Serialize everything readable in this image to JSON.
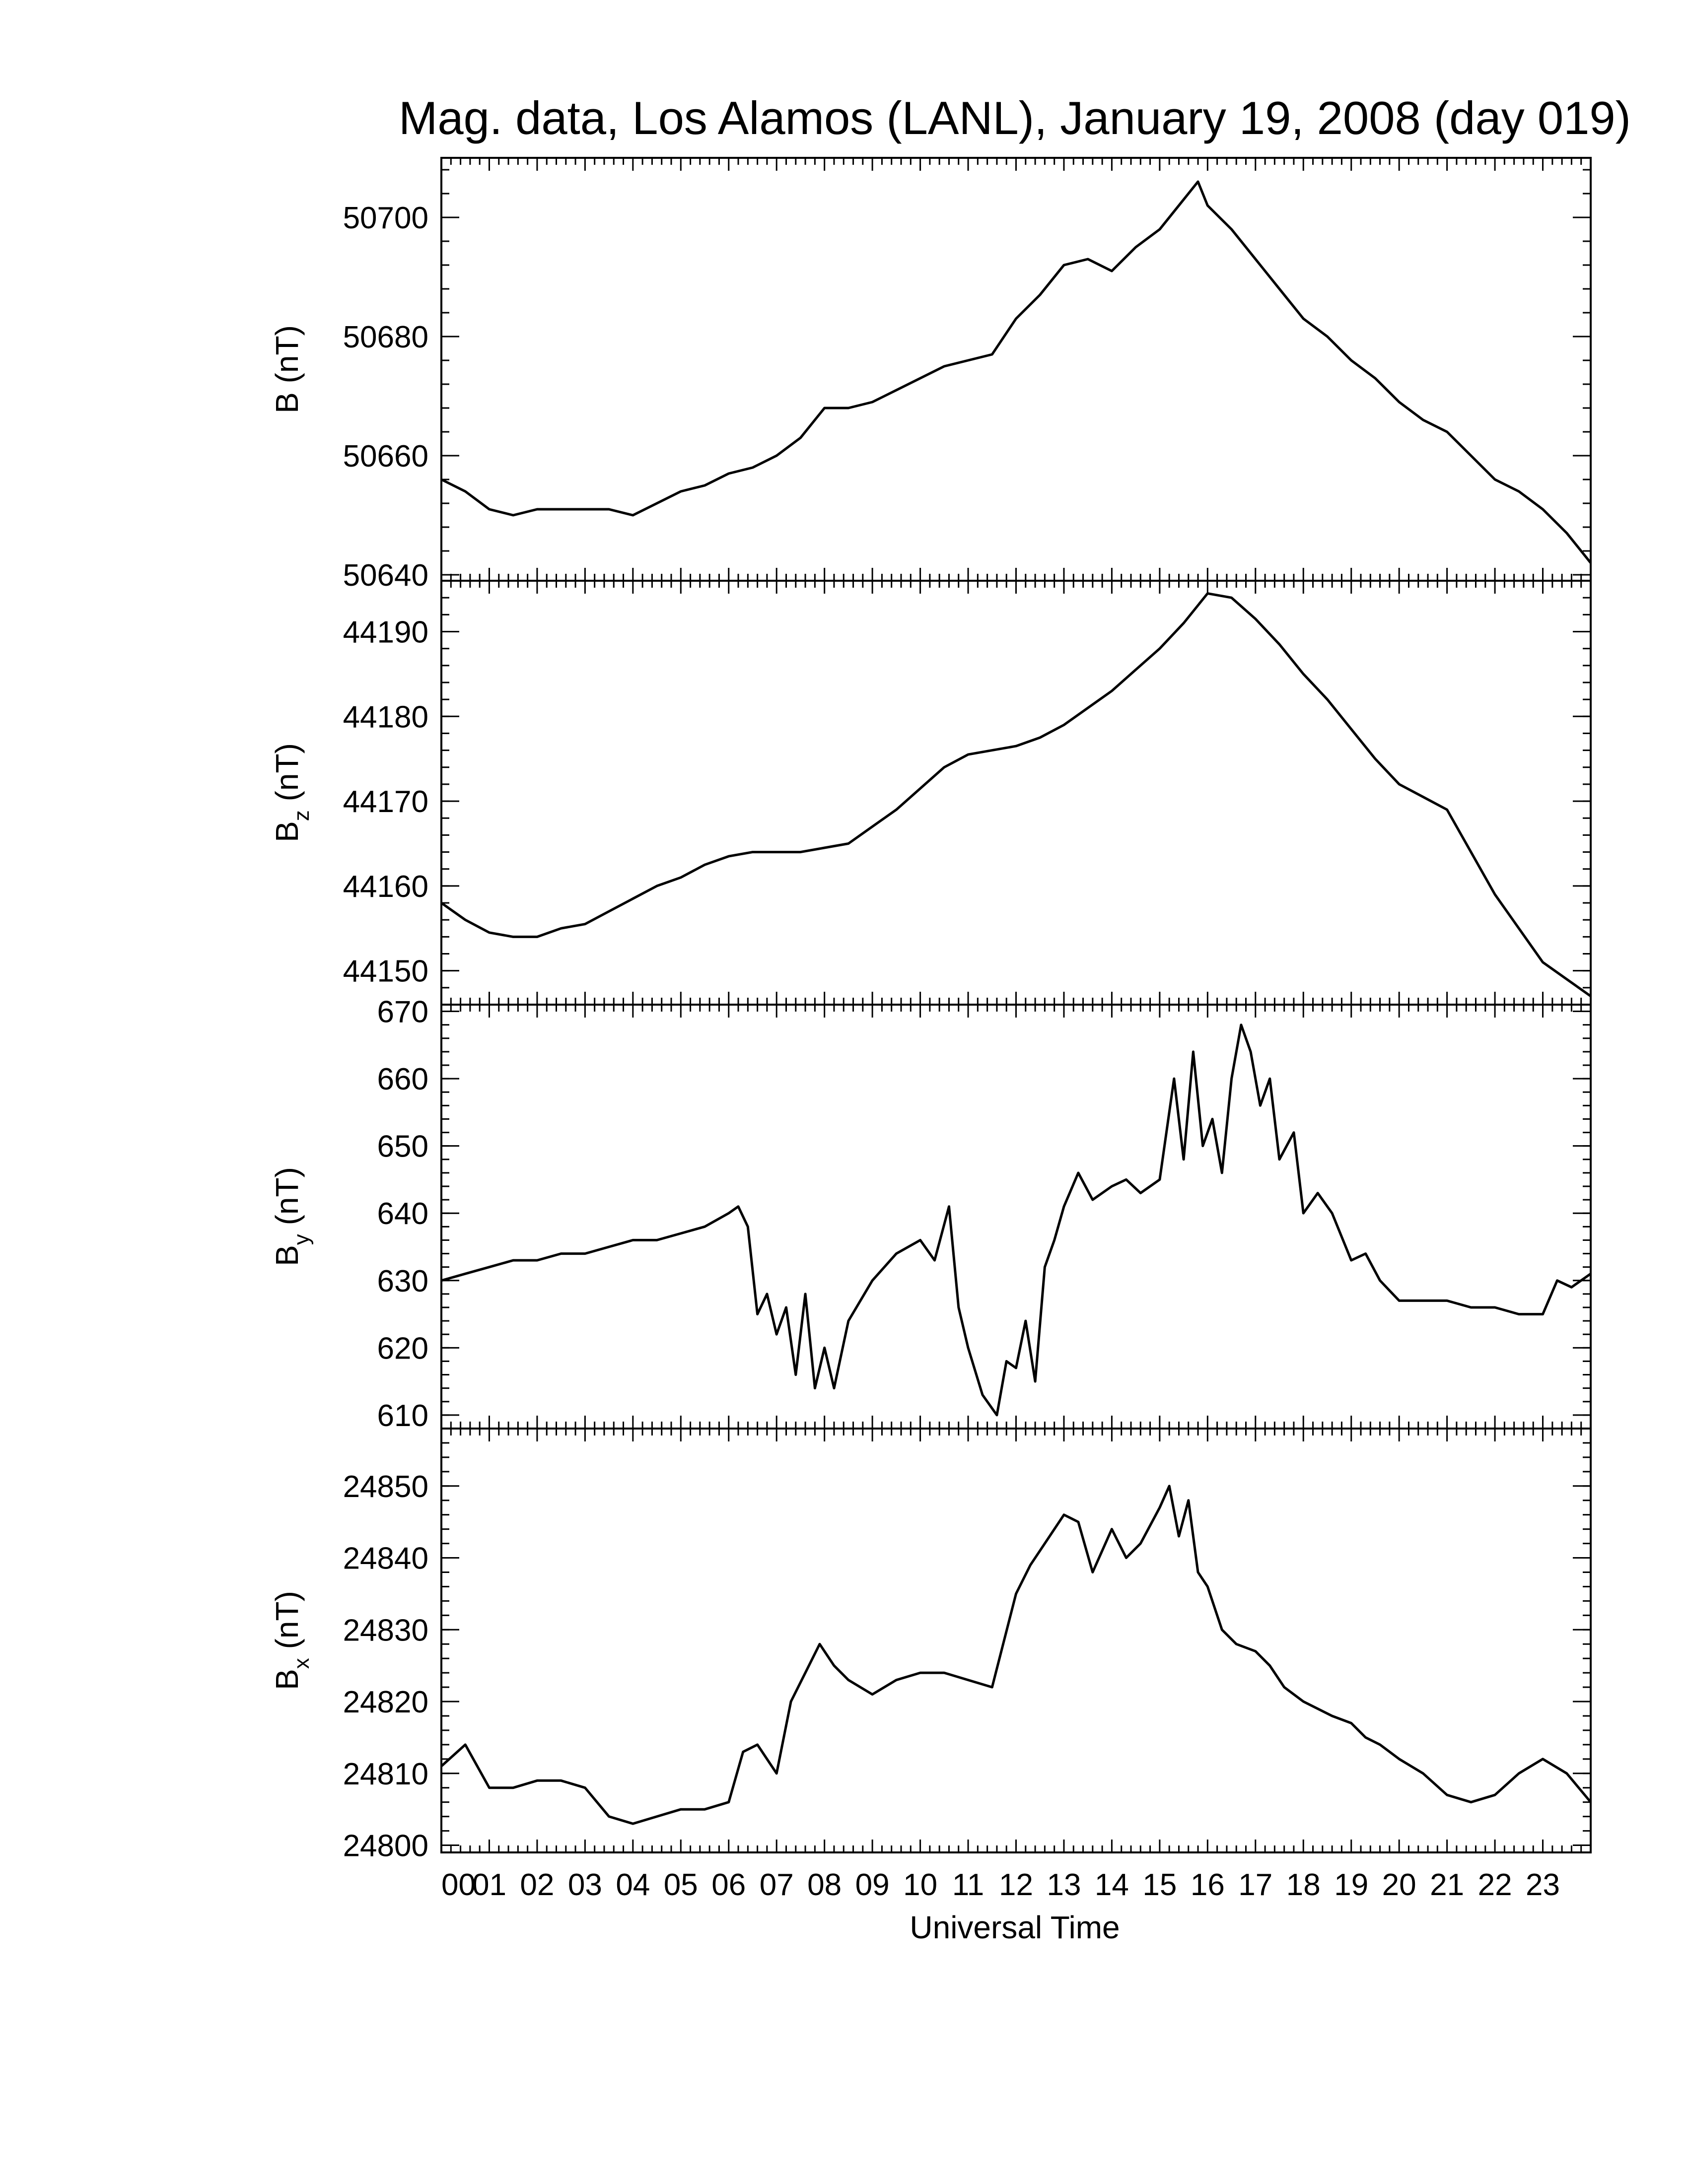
{
  "chart_data": {
    "type": "line",
    "title": "Mag. data, Los Alamos (LANL), January 19, 2008 (day 019)",
    "xlabel": "Universal Time",
    "xlim": [
      0,
      24
    ],
    "x_tick_labels": [
      "00",
      "01",
      "02",
      "03",
      "04",
      "05",
      "06",
      "07",
      "08",
      "09",
      "10",
      "11",
      "12",
      "13",
      "14",
      "15",
      "16",
      "17",
      "18",
      "19",
      "20",
      "21",
      "22",
      "23"
    ],
    "line_color": "#000000",
    "panels": [
      {
        "id": "B",
        "ylabel": "B (nT)",
        "ylabel_base": "B",
        "ylabel_sub": "",
        "ylabel_unit": " (nT)",
        "ylim": [
          50639,
          50710
        ],
        "yticks": [
          50640,
          50660,
          50680,
          50700
        ],
        "series": [
          {
            "x": [
              0,
              0.5,
              1,
              1.5,
              2,
              2.5,
              3,
              3.5,
              4,
              4.5,
              5,
              5.5,
              6,
              6.5,
              7,
              7.5,
              8,
              8.5,
              9,
              9.5,
              10,
              10.5,
              11,
              11.5,
              12,
              12.5,
              13,
              13.5,
              14,
              14.5,
              15,
              15.5,
              15.8,
              16,
              16.5,
              17,
              17.5,
              18,
              18.5,
              19,
              19.5,
              20,
              20.5,
              21,
              21.5,
              22,
              22.5,
              23,
              23.5,
              24
            ],
            "y": [
              50656,
              50654,
              50651,
              50650,
              50651,
              50651,
              50651,
              50651,
              50650,
              50652,
              50654,
              50655,
              50657,
              50658,
              50660,
              50663,
              50668,
              50668,
              50669,
              50671,
              50673,
              50675,
              50676,
              50677,
              50683,
              50687,
              50692,
              50693,
              50691,
              50695,
              50698,
              50703,
              50706,
              50702,
              50698,
              50693,
              50688,
              50683,
              50680,
              50676,
              50673,
              50669,
              50666,
              50664,
              50660,
              50656,
              50654,
              50651,
              50647,
              50642
            ]
          }
        ]
      },
      {
        "id": "Bz",
        "ylabel": "Bz (nT)",
        "ylabel_base": "B",
        "ylabel_sub": "z",
        "ylabel_unit": " (nT)",
        "ylim": [
          44146,
          44196
        ],
        "yticks": [
          44150,
          44160,
          44170,
          44180,
          44190
        ],
        "series": [
          {
            "x": [
              0,
              0.5,
              1,
              1.5,
              2,
              2.5,
              3,
              3.5,
              4,
              4.5,
              5,
              5.5,
              6,
              6.5,
              7,
              7.5,
              8,
              8.5,
              9,
              9.5,
              10,
              10.5,
              11,
              11.5,
              12,
              12.5,
              13,
              13.5,
              14,
              14.5,
              15,
              15.5,
              16,
              16.5,
              17,
              17.5,
              18,
              18.5,
              19,
              19.5,
              20,
              20.5,
              21,
              21.5,
              22,
              22.5,
              23,
              23.5,
              24
            ],
            "y": [
              44158,
              44156,
              44154.5,
              44154,
              44154,
              44155,
              44155.5,
              44157,
              44158.5,
              44160,
              44161,
              44162.5,
              44163.5,
              44164,
              44164,
              44164,
              44164.5,
              44165,
              44167,
              44169,
              44171.5,
              44174,
              44175.5,
              44176,
              44176.5,
              44177.5,
              44179,
              44181,
              44183,
              44185.5,
              44188,
              44191,
              44194.5,
              44194,
              44191.5,
              44188.5,
              44185,
              44182,
              44178.5,
              44175,
              44172,
              44170.5,
              44169,
              44164,
              44159,
              44155,
              44151,
              44149,
              44147
            ]
          }
        ]
      },
      {
        "id": "By",
        "ylabel": "By (nT)",
        "ylabel_base": "B",
        "ylabel_sub": "y",
        "ylabel_unit": " (nT)",
        "ylim": [
          608,
          671
        ],
        "yticks": [
          610,
          620,
          630,
          640,
          650,
          660,
          670
        ],
        "series": [
          {
            "x": [
              0,
              0.5,
              1,
              1.5,
              2,
              2.5,
              3,
              3.5,
              4,
              4.5,
              5,
              5.5,
              6,
              6.2,
              6.4,
              6.6,
              6.8,
              7,
              7.2,
              7.4,
              7.6,
              7.8,
              8,
              8.2,
              8.5,
              9,
              9.5,
              10,
              10.3,
              10.6,
              10.8,
              11,
              11.3,
              11.6,
              11.8,
              12,
              12.2,
              12.4,
              12.6,
              12.8,
              13,
              13.3,
              13.6,
              14,
              14.3,
              14.6,
              15,
              15.3,
              15.5,
              15.7,
              15.9,
              16.1,
              16.3,
              16.5,
              16.7,
              16.9,
              17.1,
              17.3,
              17.5,
              17.8,
              18,
              18.3,
              18.6,
              19,
              19.3,
              19.6,
              20,
              20.5,
              21,
              21.5,
              22,
              22.5,
              23,
              23.3,
              23.6,
              24
            ],
            "y": [
              630,
              631,
              632,
              633,
              633,
              634,
              634,
              635,
              636,
              636,
              637,
              638,
              640,
              641,
              638,
              625,
              628,
              622,
              626,
              616,
              628,
              614,
              620,
              614,
              624,
              630,
              634,
              636,
              633,
              641,
              626,
              620,
              613,
              610,
              618,
              617,
              624,
              615,
              632,
              636,
              641,
              646,
              642,
              644,
              645,
              643,
              645,
              660,
              648,
              664,
              650,
              654,
              646,
              660,
              668,
              664,
              656,
              660,
              648,
              652,
              640,
              643,
              640,
              633,
              634,
              630,
              627,
              627,
              627,
              626,
              626,
              625,
              625,
              630,
              629,
              631
            ]
          }
        ]
      },
      {
        "id": "Bx",
        "ylabel": "Bx (nT)",
        "ylabel_base": "B",
        "ylabel_sub": "x",
        "ylabel_unit": " (nT)",
        "ylim": [
          24799,
          24858
        ],
        "yticks": [
          24800,
          24810,
          24820,
          24830,
          24840,
          24850
        ],
        "series": [
          {
            "x": [
              0,
              0.5,
              1,
              1.5,
              2,
              2.5,
              3,
              3.5,
              4,
              4.5,
              5,
              5.5,
              6,
              6.3,
              6.6,
              7,
              7.3,
              7.6,
              7.9,
              8.2,
              8.5,
              9,
              9.5,
              10,
              10.5,
              11,
              11.5,
              12,
              12.3,
              12.6,
              13,
              13.3,
              13.6,
              14,
              14.3,
              14.6,
              15,
              15.2,
              15.4,
              15.6,
              15.8,
              16,
              16.3,
              16.6,
              17,
              17.3,
              17.6,
              18,
              18.3,
              18.6,
              19,
              19.3,
              19.6,
              20,
              20.5,
              21,
              21.5,
              22,
              22.5,
              23,
              23.5,
              24
            ],
            "y": [
              24811,
              24814,
              24808,
              24808,
              24809,
              24809,
              24808,
              24804,
              24803,
              24804,
              24805,
              24805,
              24806,
              24813,
              24814,
              24810,
              24820,
              24824,
              24828,
              24825,
              24823,
              24821,
              24823,
              24824,
              24824,
              24823,
              24822,
              24835,
              24839,
              24842,
              24846,
              24845,
              24838,
              24844,
              24840,
              24842,
              24847,
              24850,
              24843,
              24848,
              24838,
              24836,
              24830,
              24828,
              24827,
              24825,
              24822,
              24820,
              24819,
              24818,
              24817,
              24815,
              24814,
              24812,
              24810,
              24807,
              24806,
              24807,
              24810,
              24812,
              24810,
              24806
            ]
          }
        ]
      }
    ]
  }
}
